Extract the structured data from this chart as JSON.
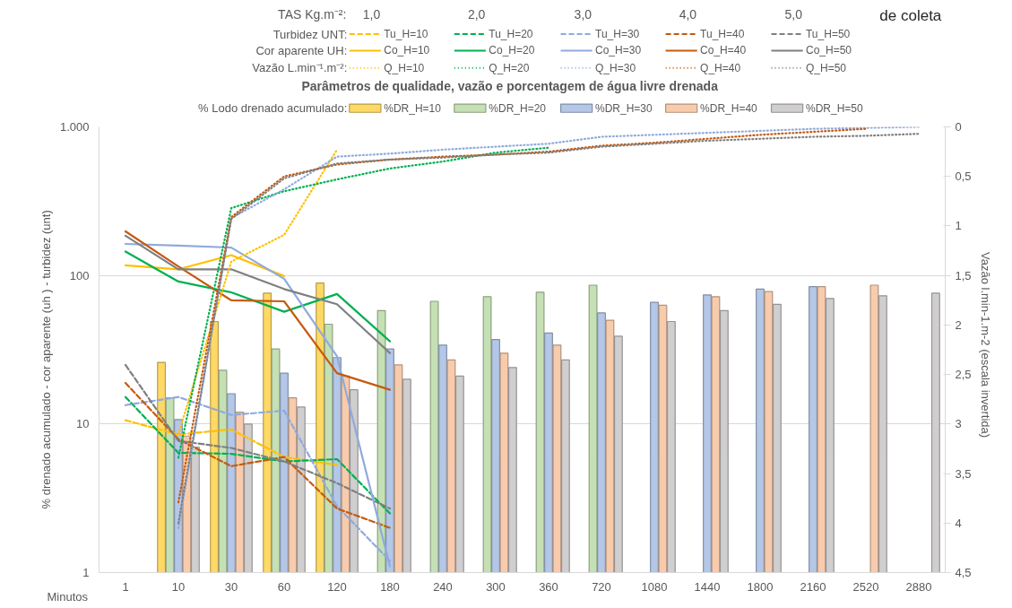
{
  "chart_data": {
    "type": "bar",
    "title": "Parâmetros de qualidade, vazão e porcentagem de água livre drenada",
    "xlabel": "Minutos",
    "ylabel": "% drenado acumulado  -   cor aparente (uh )  -   turbidez (unt)",
    "y2label": "Vazão l.min-1.m-2    (escala invertida)",
    "annotations": [
      "TAS Kg.m⁻²:",
      "1,0",
      "2,0",
      "3,0",
      "4,0",
      "5,0",
      "Turbidez UNT:",
      "Cor aparente UH:",
      "Vazão L.min⁻¹.m⁻²:",
      "% Lodo drenado acumulado:",
      "de coleta"
    ],
    "categories": [
      "1",
      "10",
      "30",
      "60",
      "120",
      "180",
      "240",
      "300",
      "360",
      "720",
      "1080",
      "1440",
      "1800",
      "2160",
      "2520",
      "2880"
    ],
    "log": "y",
    "ylim": [
      1,
      1000
    ],
    "yticks": [
      1,
      10,
      100,
      {
        "value": 1000,
        "label": "1.000"
      }
    ],
    "y2lim": [
      4.5,
      0
    ],
    "y2ticks": [
      0,
      {
        "value": 0.5,
        "label": "0,5"
      },
      1,
      {
        "value": 1.5,
        "label": "1,5"
      },
      2,
      {
        "value": 2.5,
        "label": "2,5"
      },
      3,
      {
        "value": 3.5,
        "label": "3,5"
      },
      4,
      {
        "value": 4.5,
        "label": "4,5"
      }
    ],
    "grid": "y",
    "legend": "top",
    "series": [
      {
        "name": "%DR_H=10",
        "color": "#ffd966",
        "values": [
          null,
          26,
          49,
          76,
          89,
          null,
          null,
          null,
          null,
          null,
          null,
          null,
          null,
          null,
          null,
          null
        ]
      },
      {
        "name": "%DR_H=20",
        "color": "#c5e0b4",
        "values": [
          null,
          15,
          23,
          32,
          47,
          58,
          67,
          72,
          77,
          86,
          null,
          null,
          null,
          null,
          null,
          null
        ]
      },
      {
        "name": "%DR_H=30",
        "color": "#b4c7e7",
        "values": [
          null,
          10.7,
          16,
          22,
          28,
          32,
          34,
          37,
          41,
          56,
          66,
          74,
          81,
          84,
          null,
          null
        ]
      },
      {
        "name": "%DR_H=40",
        "color": "#f8cbad",
        "values": [
          null,
          8.3,
          12,
          15,
          21,
          25,
          27,
          30,
          34,
          50,
          63,
          72,
          78,
          84,
          86,
          null
        ]
      },
      {
        "name": "%DR_H=50",
        "color": "#d0cece",
        "values": [
          null,
          7,
          10,
          13,
          17,
          20,
          21,
          24,
          27,
          39,
          49,
          58,
          64,
          70,
          73,
          76
        ]
      },
      {
        "name": "Tu_H=10",
        "type": "line",
        "line_style": "dashed",
        "color": "#ffc000",
        "values": [
          10.6,
          8.5,
          9.2,
          6.0,
          5.3,
          null,
          null,
          null,
          null,
          null,
          null,
          null,
          null,
          null,
          null,
          null
        ]
      },
      {
        "name": "Tu_H=20",
        "type": "line",
        "line_style": "dashed",
        "color": "#00b050",
        "values": [
          15.2,
          6.4,
          6.3,
          5.6,
          5.8,
          2.5,
          null,
          null,
          null,
          null,
          null,
          null,
          null,
          null,
          null,
          null
        ]
      },
      {
        "name": "Tu_H=30",
        "type": "line",
        "line_style": "dashed",
        "color": "#8faadc",
        "values": [
          13.4,
          15.2,
          11.5,
          12.3,
          2.8,
          1.2,
          null,
          null,
          null,
          null,
          null,
          null,
          null,
          null,
          null,
          null
        ]
      },
      {
        "name": "Tu_H=40",
        "type": "line",
        "line_style": "dashed",
        "color": "#c55a11",
        "values": [
          18.9,
          7.9,
          5.2,
          6.0,
          2.7,
          2.0,
          null,
          null,
          null,
          null,
          null,
          null,
          null,
          null,
          null,
          null
        ]
      },
      {
        "name": "Tu_H=50",
        "type": "line",
        "line_style": "dashed",
        "color": "#7f7f7f",
        "values": [
          25,
          7.7,
          6.9,
          5.6,
          4.0,
          2.7,
          null,
          null,
          null,
          null,
          null,
          null,
          null,
          null,
          null,
          null
        ]
      },
      {
        "name": "Co_H=10",
        "type": "line",
        "line_style": "solid",
        "color": "#ffc000",
        "values": [
          117,
          110,
          137,
          99,
          null,
          null,
          null,
          null,
          null,
          null,
          null,
          null,
          null,
          null,
          null,
          null
        ]
      },
      {
        "name": "Co_H=20",
        "type": "line",
        "line_style": "solid",
        "color": "#00b050",
        "values": [
          145,
          91,
          77,
          57,
          75,
          36,
          null,
          null,
          null,
          null,
          null,
          null,
          null,
          null,
          null,
          null
        ]
      },
      {
        "name": "Co_H=30",
        "type": "line",
        "line_style": "solid",
        "color": "#8faadc",
        "values": [
          163,
          159,
          154,
          95,
          28.5,
          1.1,
          null,
          null,
          null,
          null,
          null,
          null,
          null,
          null,
          null,
          null
        ]
      },
      {
        "name": "Co_H=40",
        "type": "line",
        "line_style": "solid",
        "color": "#c55a11",
        "values": [
          198,
          115,
          68,
          67,
          22,
          17,
          null,
          null,
          null,
          null,
          null,
          null,
          null,
          null,
          null,
          null
        ]
      },
      {
        "name": "Co_H=50",
        "type": "line",
        "line_style": "solid",
        "color": "#7f7f7f",
        "values": [
          185,
          110,
          110,
          81,
          64,
          30,
          null,
          null,
          null,
          null,
          null,
          null,
          null,
          null,
          null,
          null
        ]
      },
      {
        "name": "Q_H=10",
        "type": "line",
        "line_style": "dotted",
        "axis": "y2",
        "color": "#ffc000",
        "values": [
          null,
          3.1,
          1.36,
          1.09,
          0.23,
          null,
          null,
          null,
          null,
          null,
          null,
          null,
          null,
          null,
          null,
          null
        ]
      },
      {
        "name": "Q_H=20",
        "type": "line",
        "line_style": "dotted",
        "axis": "y2",
        "color": "#00b050",
        "values": [
          null,
          3.34,
          0.82,
          0.65,
          0.53,
          0.42,
          0.35,
          0.26,
          0.21,
          null,
          null,
          null,
          null,
          null,
          null,
          null
        ]
      },
      {
        "name": "Q_H=30",
        "type": "line",
        "line_style": "dotted",
        "axis": "y2",
        "color": "#8faadc",
        "values": [
          null,
          4.05,
          0.92,
          0.63,
          0.3,
          0.27,
          0.23,
          0.2,
          0.17,
          0.1,
          0.08,
          0.06,
          0.04,
          0.02,
          0.01,
          0
        ]
      },
      {
        "name": "Q_H=40",
        "type": "line",
        "line_style": "dotted",
        "axis": "y2",
        "color": "#c55a11",
        "values": [
          null,
          3.79,
          0.91,
          0.5,
          0.38,
          0.33,
          0.3,
          0.28,
          0.25,
          0.19,
          0.16,
          0.12,
          0.08,
          0.05,
          0.02,
          null
        ]
      },
      {
        "name": "Q_H=50",
        "type": "line",
        "line_style": "dotted",
        "axis": "y2",
        "color": "#7f7f7f",
        "values": [
          null,
          4.0,
          0.93,
          0.52,
          0.37,
          0.33,
          0.31,
          0.28,
          0.26,
          0.2,
          0.17,
          0.14,
          0.12,
          0.1,
          0.09,
          0.07
        ]
      }
    ]
  }
}
